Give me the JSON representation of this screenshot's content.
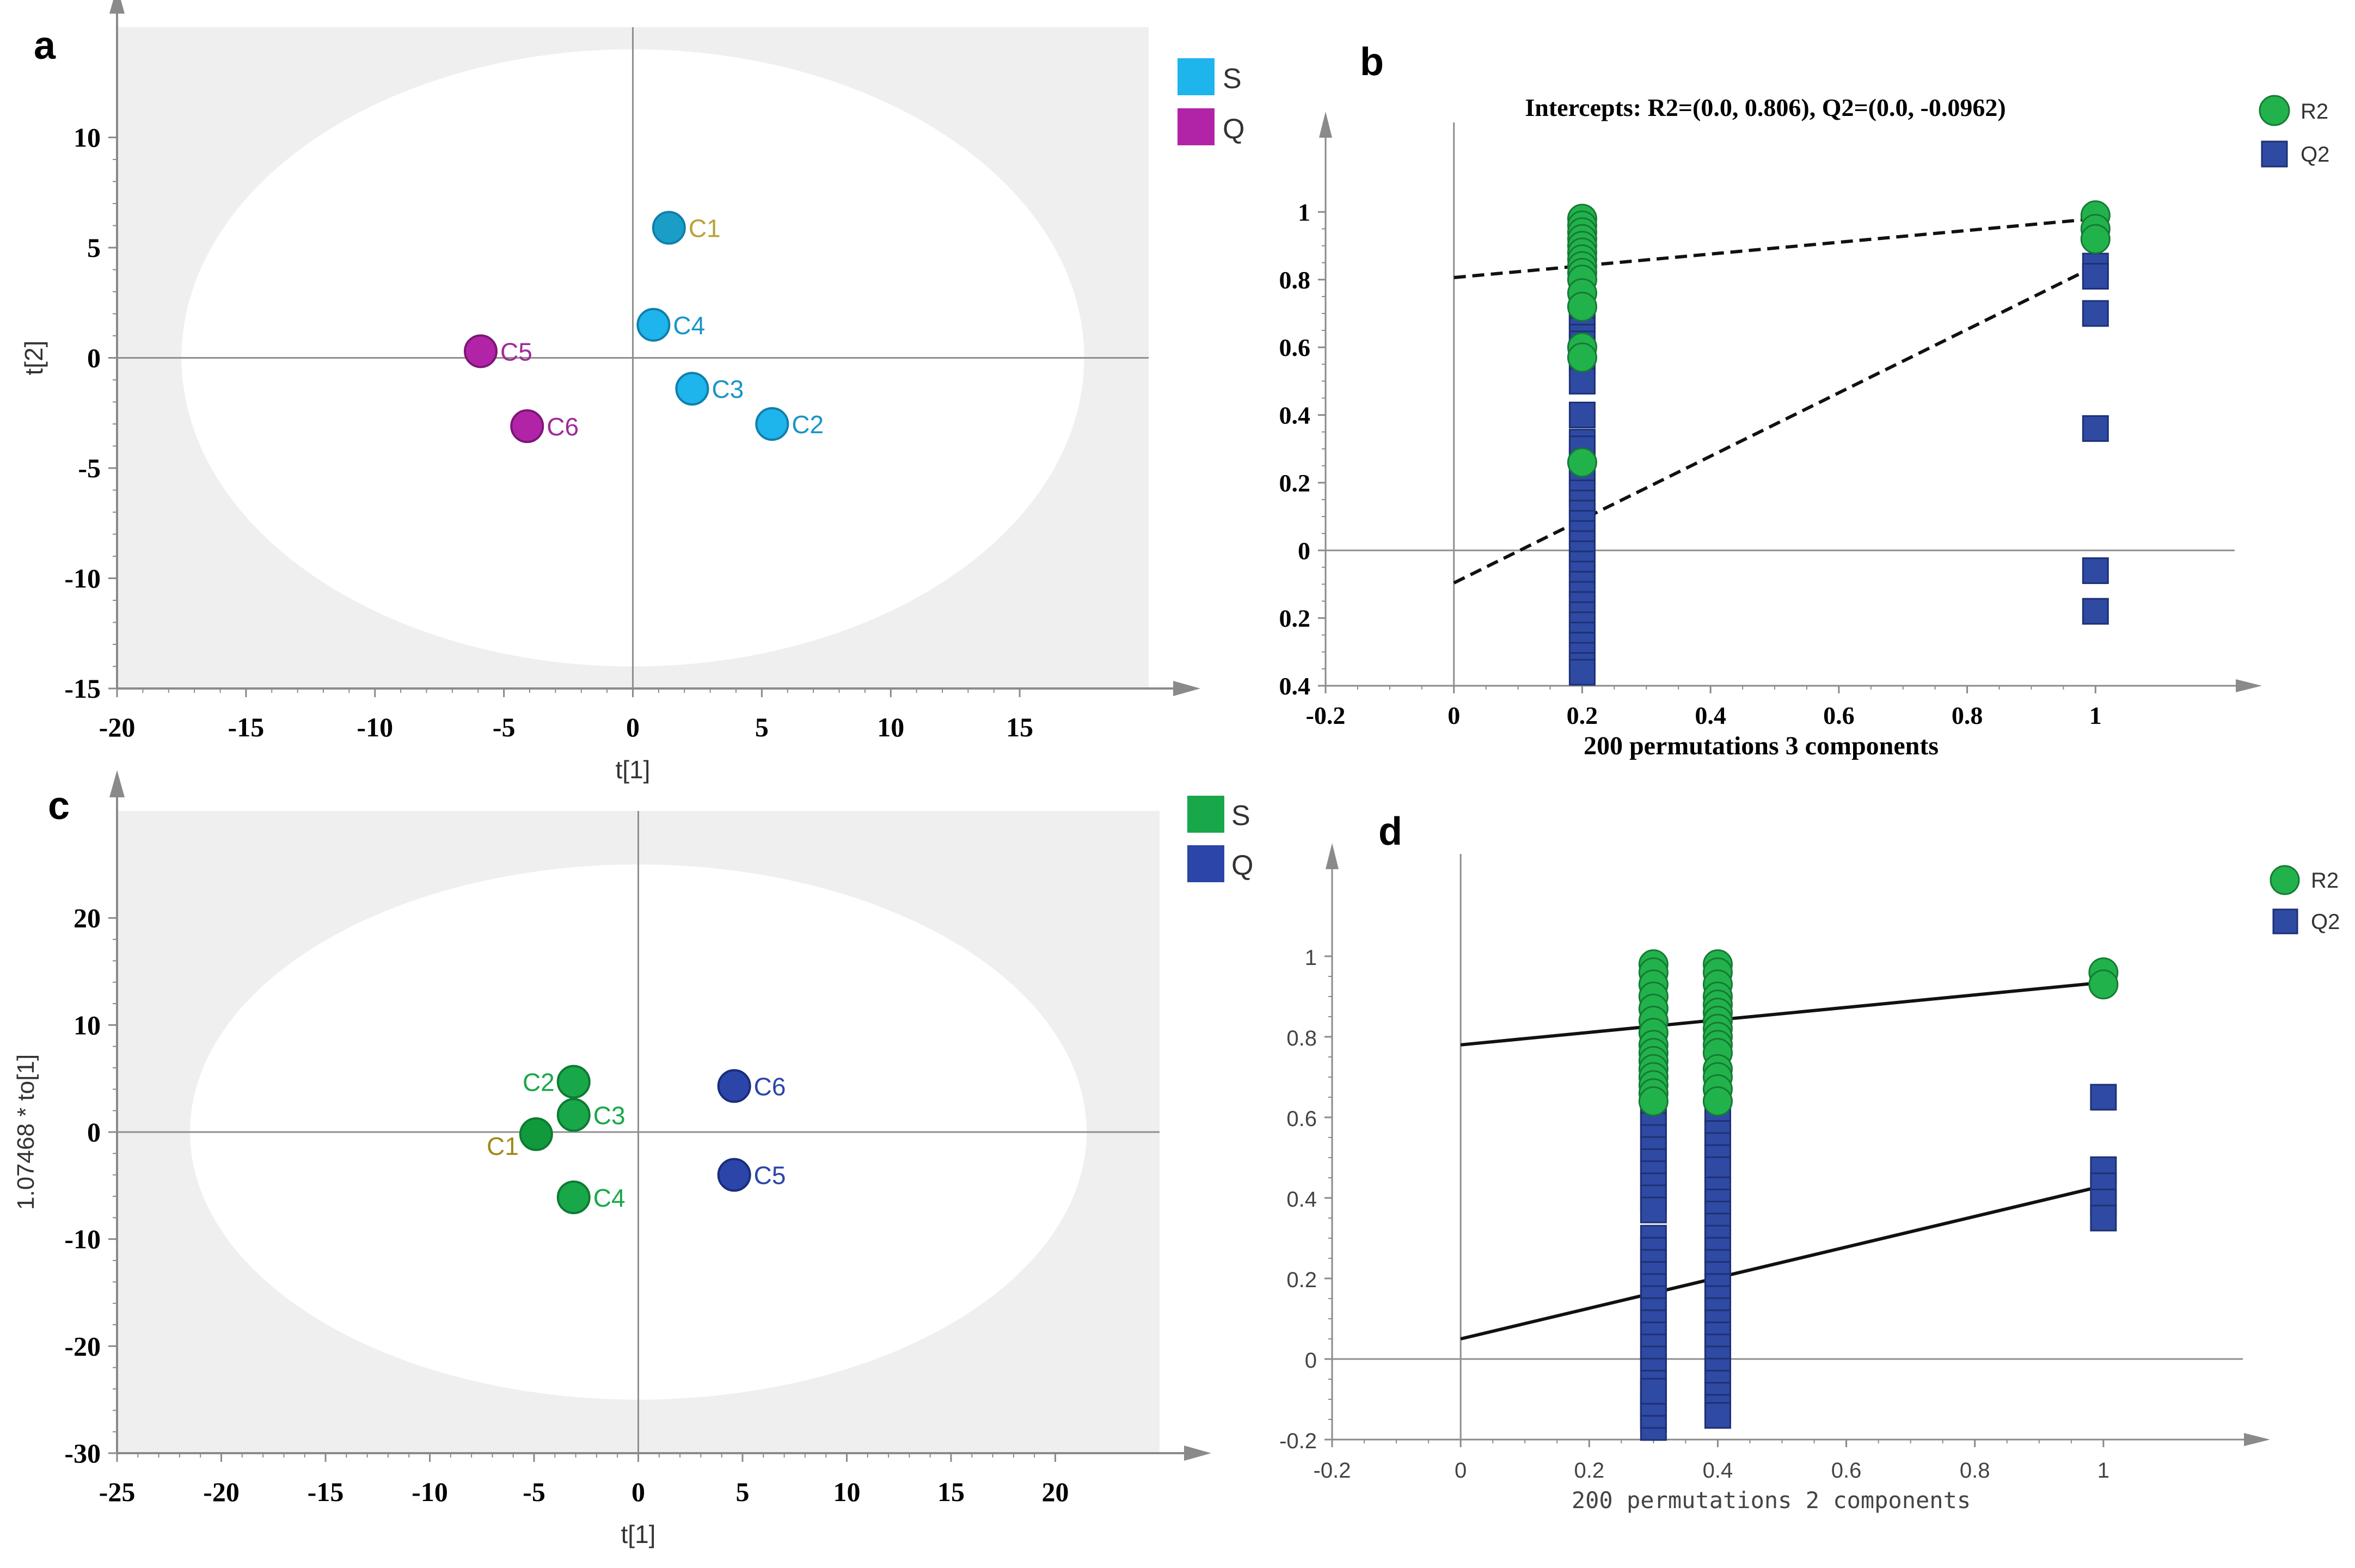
{
  "colors": {
    "s_blue": "#1eb4ec",
    "q_purple": "#b124a8",
    "s_green": "#18a84a",
    "q_navy": "#2b45a9",
    "r2_green": "#22b24c",
    "q2_blue": "#2f4aa3",
    "panel_bg": "#efefef",
    "ellipse_fill": "#ffffff",
    "axis": "#8a8a8a"
  },
  "chart_data": [
    {
      "panel": "a",
      "type": "scatter",
      "xlabel": "t[1]",
      "ylabel": "t[2]",
      "xlim": [
        -20,
        20
      ],
      "ylim": [
        -15,
        15
      ],
      "xticks": [
        -20,
        -15,
        -10,
        -5,
        0,
        5,
        10,
        15
      ],
      "yticks": [
        -15,
        -10,
        -5,
        0,
        5,
        10
      ],
      "xtick_labels": [
        "-20",
        "-15",
        "-10",
        "-5",
        "0",
        "5",
        "10",
        "15"
      ],
      "ytick_labels": [
        "-15",
        "-10",
        "-5",
        "0",
        "5",
        "10"
      ],
      "ellipse": {
        "cx": 0,
        "cy": 0,
        "rx": 17.5,
        "ry": 14
      },
      "legend": [
        {
          "label": "S",
          "color": "#1eb4ec"
        },
        {
          "label": "Q",
          "color": "#b124a8"
        }
      ],
      "points": [
        {
          "label": "C1",
          "group": "S",
          "x": 1.4,
          "y": 5.9
        },
        {
          "label": "C4",
          "group": "S",
          "x": 0.8,
          "y": 1.5
        },
        {
          "label": "C3",
          "group": "S",
          "x": 2.3,
          "y": -1.4
        },
        {
          "label": "C2",
          "group": "S",
          "x": 5.4,
          "y": -3.0
        },
        {
          "label": "C5",
          "group": "Q",
          "x": -5.9,
          "y": 0.3
        },
        {
          "label": "C6",
          "group": "Q",
          "x": -4.1,
          "y": -3.1
        }
      ]
    },
    {
      "panel": "b",
      "type": "scatter",
      "title": "Intercepts: R2=(0.0, 0.806), Q2=(0.0, -0.0962)",
      "xlabel": "200 permutations 3 components",
      "ylabel": "",
      "xlim": [
        -0.2,
        1.2
      ],
      "ylim": [
        -0.4,
        1.2
      ],
      "xticks": [
        -0.2,
        0,
        0.2,
        0.4,
        0.6,
        0.8,
        1
      ],
      "yticks": [
        -0.4,
        -0.2,
        0,
        0.2,
        0.4,
        0.6,
        0.8,
        1
      ],
      "xtick_labels": [
        "-0.2",
        "0",
        "0.2",
        "0.4",
        "0.6",
        "0.8",
        "1"
      ],
      "ytick_labels": [
        "0.4",
        "0.2",
        "0",
        "0.2",
        "0.4",
        "0.6",
        "0.8",
        "1"
      ],
      "legend": [
        {
          "label": "R2",
          "marker": "circle",
          "color": "#22b24c"
        },
        {
          "label": "Q2",
          "marker": "square",
          "color": "#2f4aa3"
        }
      ],
      "series": [
        {
          "name": "R2",
          "x": [
            0.2,
            0.2,
            0.2,
            0.2,
            0.2,
            0.2,
            0.2,
            0.2,
            0.2,
            0.2,
            0.2,
            0.2,
            0.2,
            0.2,
            0.2,
            1,
            1,
            1
          ],
          "y": [
            0.98,
            0.96,
            0.94,
            0.92,
            0.9,
            0.88,
            0.86,
            0.84,
            0.82,
            0.8,
            0.76,
            0.72,
            0.6,
            0.57,
            0.26,
            0.99,
            0.95,
            0.92
          ]
        },
        {
          "name": "Q2",
          "x": [
            0.2,
            0.2,
            0.2,
            0.2,
            0.2,
            0.2,
            0.2,
            0.2,
            0.2,
            0.2,
            0.2,
            0.2,
            0.2,
            0.2,
            0.2,
            0.2,
            0.2,
            0.2,
            0.2,
            0.2,
            0.2,
            0.2,
            0.2,
            0.2,
            0.2,
            0.2,
            0.2,
            0.2,
            0.2,
            0.2,
            0.2,
            0.2,
            0.2,
            0.2,
            0.2,
            0.2,
            0.2,
            1,
            1,
            1,
            1,
            1,
            1
          ],
          "y": [
            0.75,
            0.73,
            0.71,
            0.69,
            0.67,
            0.65,
            0.63,
            0.61,
            0.59,
            0.57,
            0.55,
            0.5,
            0.4,
            0.26,
            0.23,
            0.2,
            0.17,
            0.14,
            0.11,
            0.08,
            0.05,
            0.02,
            -0.01,
            -0.04,
            -0.07,
            -0.1,
            -0.13,
            -0.16,
            -0.19,
            -0.22,
            -0.25,
            -0.28,
            -0.31,
            -0.34,
            -0.36,
            0.32,
            0.3,
            0.84,
            0.81,
            0.7,
            0.36,
            -0.06,
            -0.18
          ]
        }
      ],
      "regression_lines": [
        {
          "name": "R2",
          "style": "dashed",
          "x": [
            0,
            1
          ],
          "y": [
            0.806,
            0.98
          ]
        },
        {
          "name": "Q2",
          "style": "dashed",
          "x": [
            0,
            1
          ],
          "y": [
            -0.0962,
            0.84
          ]
        }
      ]
    },
    {
      "panel": "c",
      "type": "scatter",
      "xlabel": "t[1]",
      "ylabel": "1.07468 * to[1]",
      "xlim": [
        -25,
        25
      ],
      "ylim": [
        -30,
        30
      ],
      "xticks": [
        -25,
        -20,
        -15,
        -10,
        -5,
        0,
        5,
        10,
        15,
        20
      ],
      "yticks": [
        -30,
        -20,
        -10,
        0,
        10,
        20
      ],
      "xtick_labels": [
        "-25",
        "-20",
        "-15",
        "-10",
        "-5",
        "0",
        "5",
        "10",
        "15",
        "20"
      ],
      "ytick_labels": [
        "-30",
        "-20",
        "-10",
        "0",
        "10",
        "20"
      ],
      "ellipse": {
        "cx": 0,
        "cy": 0,
        "rx": 21.5,
        "ry": 25
      },
      "legend": [
        {
          "label": "S",
          "color": "#18a84a"
        },
        {
          "label": "Q",
          "color": "#2b45a9"
        }
      ],
      "points": [
        {
          "label": "C2",
          "group": "S",
          "x": -3.1,
          "y": 4.7
        },
        {
          "label": "C3",
          "group": "S",
          "x": -3.1,
          "y": 1.6
        },
        {
          "label": "C1",
          "group": "S",
          "x": -4.9,
          "y": -0.2
        },
        {
          "label": "C4",
          "group": "S",
          "x": -3.1,
          "y": -6.1
        },
        {
          "label": "C6",
          "group": "Q",
          "x": 4.6,
          "y": 4.3
        },
        {
          "label": "C5",
          "group": "Q",
          "x": 4.6,
          "y": -4.0
        }
      ]
    },
    {
      "panel": "d",
      "type": "scatter",
      "xlabel": "200 permutations 2 components",
      "ylabel": "",
      "xlim": [
        -0.2,
        1.2
      ],
      "ylim": [
        -0.2,
        1.2
      ],
      "xticks": [
        -0.2,
        0,
        0.2,
        0.4,
        0.6,
        0.8,
        1
      ],
      "yticks": [
        -0.2,
        0,
        0.2,
        0.4,
        0.6,
        0.8,
        1
      ],
      "xtick_labels": [
        "-0.2",
        "0",
        "0.2",
        "0.4",
        "0.6",
        "0.8",
        "1"
      ],
      "ytick_labels": [
        "-0.2",
        "0",
        "0.2",
        "0.4",
        "0.6",
        "0.8",
        "1"
      ],
      "legend": [
        {
          "label": "R2",
          "marker": "circle",
          "color": "#22b24c"
        },
        {
          "label": "Q2",
          "marker": "square",
          "color": "#2f4aa3"
        }
      ],
      "series": [
        {
          "name": "R2",
          "x": [
            0.3,
            0.3,
            0.3,
            0.3,
            0.3,
            0.3,
            0.3,
            0.3,
            0.3,
            0.3,
            0.3,
            0.3,
            0.3,
            0.3,
            0.3,
            0.4,
            0.4,
            0.4,
            0.4,
            0.4,
            0.4,
            0.4,
            0.4,
            0.4,
            0.4,
            0.4,
            0.4,
            0.4,
            0.4,
            0.4,
            1,
            1
          ],
          "y": [
            0.98,
            0.96,
            0.93,
            0.9,
            0.87,
            0.84,
            0.81,
            0.78,
            0.76,
            0.74,
            0.72,
            0.7,
            0.68,
            0.66,
            0.64,
            0.98,
            0.96,
            0.93,
            0.9,
            0.88,
            0.86,
            0.84,
            0.82,
            0.8,
            0.78,
            0.76,
            0.72,
            0.7,
            0.67,
            0.64,
            0.96,
            0.93
          ]
        },
        {
          "name": "Q2",
          "x": [
            0.3,
            0.3,
            0.3,
            0.3,
            0.3,
            0.3,
            0.3,
            0.3,
            0.3,
            0.3,
            0.3,
            0.3,
            0.3,
            0.3,
            0.3,
            0.3,
            0.3,
            0.3,
            0.3,
            0.3,
            0.3,
            0.3,
            0.3,
            0.3,
            0.3,
            0.3,
            0.3,
            0.3,
            0.3,
            0.3,
            0.4,
            0.4,
            0.4,
            0.4,
            0.4,
            0.4,
            0.4,
            0.4,
            0.4,
            0.4,
            0.4,
            0.4,
            0.4,
            0.4,
            0.4,
            0.4,
            0.4,
            0.4,
            0.4,
            0.4,
            0.4,
            0.4,
            0.4,
            0.4,
            0.4,
            0.4,
            1,
            1,
            1,
            1,
            1
          ],
          "y": [
            0.64,
            0.61,
            0.58,
            0.55,
            0.52,
            0.49,
            0.46,
            0.43,
            0.4,
            0.37,
            0.3,
            0.27,
            0.24,
            0.21,
            0.18,
            0.15,
            0.12,
            0.09,
            0.06,
            0.03,
            0.0,
            -0.03,
            -0.06,
            -0.09,
            -0.12,
            -0.15,
            -0.17,
            -0.14,
            -0.11,
            -0.08,
            0.62,
            0.59,
            0.56,
            0.53,
            0.5,
            0.47,
            0.42,
            0.39,
            0.36,
            0.33,
            0.3,
            0.27,
            0.24,
            0.21,
            0.18,
            0.15,
            0.12,
            0.09,
            0.06,
            0.03,
            0.0,
            -0.03,
            -0.06,
            -0.09,
            -0.12,
            -0.14,
            0.65,
            0.47,
            0.43,
            0.39,
            0.35
          ]
        }
      ],
      "regression_lines": [
        {
          "name": "R2",
          "style": "solid",
          "x": [
            0,
            1
          ],
          "y": [
            0.78,
            0.935
          ]
        },
        {
          "name": "Q2",
          "style": "solid",
          "x": [
            0,
            1
          ],
          "y": [
            0.05,
            0.43
          ]
        }
      ]
    }
  ]
}
